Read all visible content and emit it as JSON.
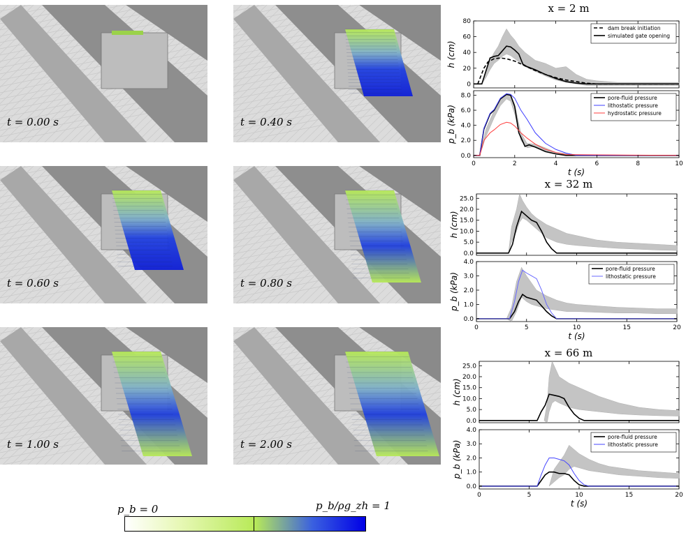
{
  "snapshots": [
    {
      "label": "t = 0.00 s",
      "fill": 0.0
    },
    {
      "label": "t = 0.40 s",
      "fill": 0.4
    },
    {
      "label": "t = 0.60 s",
      "fill": 0.6
    },
    {
      "label": "t = 0.80 s",
      "fill": 0.8
    },
    {
      "label": "t = 1.00 s",
      "fill": 1.0
    },
    {
      "label": "t = 2.00 s",
      "fill": 2.0
    }
  ],
  "colorbar": {
    "left_label": "p_b = 0",
    "right_label": "p_b/ρg_zh = 1",
    "colors": [
      "#ffffff",
      "#e8f8b8",
      "#b8ea58",
      "#3a60e0",
      "#0000e6"
    ]
  },
  "chart_data": [
    {
      "type": "line",
      "title": "x = 2 m",
      "ylabel": "h (cm)",
      "xlim": [
        0,
        10
      ],
      "ylim": [
        -5,
        80
      ],
      "yticks": [
        0,
        20,
        40,
        60,
        80
      ],
      "xticks": [
        0,
        2,
        4,
        6,
        8,
        10
      ],
      "show_xticklabels": false,
      "legend": "top-right",
      "band": {
        "x": [
          0.4,
          0.6,
          0.8,
          1.0,
          1.2,
          1.4,
          1.6,
          1.8,
          2.0,
          2.2,
          2.5,
          3.0,
          3.5,
          4.0,
          4.5,
          5.0,
          5.5,
          6.0,
          7.0,
          8.0,
          9.0,
          10.0
        ],
        "lo": [
          0,
          8,
          18,
          26,
          30,
          35,
          38,
          36,
          32,
          28,
          22,
          16,
          10,
          5,
          2,
          0,
          -2,
          -2,
          -2,
          -2,
          -2,
          -2
        ],
        "hi": [
          0,
          15,
          30,
          40,
          48,
          60,
          70,
          62,
          56,
          48,
          40,
          30,
          26,
          20,
          22,
          12,
          6,
          4,
          2,
          2,
          2,
          2
        ]
      },
      "series": [
        {
          "name": "dam break initiation",
          "color": "#000000",
          "dash": "5,3",
          "x": [
            0.2,
            0.35,
            0.5,
            0.7,
            1.0,
            1.3,
            1.6,
            2.0,
            2.5,
            3.0,
            3.5,
            4.0,
            4.5,
            5.0,
            5.5,
            6.0,
            10.0
          ],
          "y": [
            0,
            10,
            20,
            28,
            32,
            33,
            32,
            29,
            23,
            17,
            12,
            8,
            5,
            3,
            1,
            0,
            0
          ]
        },
        {
          "name": "simulated gate opening",
          "color": "#000000",
          "dash": "",
          "x": [
            0,
            0.4,
            0.8,
            1.0,
            1.2,
            1.4,
            1.6,
            1.8,
            2.0,
            2.2,
            2.4,
            2.6,
            3.0,
            3.5,
            4.0,
            4.5,
            5.0,
            5.5,
            10.0
          ],
          "y": [
            0,
            0,
            33,
            35,
            36,
            42,
            48,
            47,
            43,
            38,
            25,
            22,
            18,
            12,
            7,
            3,
            1,
            0,
            0
          ]
        }
      ]
    },
    {
      "type": "line",
      "ylabel": "p_b (kPa)",
      "xlabel": "t (s)",
      "xlim": [
        0,
        10
      ],
      "ylim": [
        -0.3,
        8.6
      ],
      "yticks": [
        0.0,
        2.0,
        4.0,
        6.0,
        8.0
      ],
      "xticks": [
        0,
        2,
        4,
        6,
        8,
        10
      ],
      "show_xticklabels": true,
      "legend": "top-right",
      "band": {
        "x": [
          0.3,
          0.6,
          1.0,
          1.3,
          1.6,
          1.8,
          2.0,
          2.3,
          2.6,
          3.0,
          3.5,
          4.0,
          5.0,
          10.0
        ],
        "lo": [
          0,
          2.5,
          5.0,
          6.6,
          7.5,
          7.2,
          5.5,
          2.0,
          1.0,
          1.2,
          0.6,
          0.2,
          0,
          0
        ],
        "hi": [
          0,
          3.5,
          6.0,
          7.6,
          8.2,
          8.0,
          6.8,
          3.0,
          1.6,
          1.5,
          1.0,
          0.4,
          0.1,
          0
        ]
      },
      "series": [
        {
          "name": "pore-fluid pressure",
          "color": "#000000",
          "dash": "",
          "x": [
            0,
            0.3,
            0.5,
            0.8,
            1.0,
            1.3,
            1.6,
            1.8,
            2.0,
            2.2,
            2.5,
            2.7,
            3.0,
            3.5,
            4.0,
            4.5,
            10.0
          ],
          "y": [
            0,
            0,
            3.5,
            5.5,
            6.0,
            7.5,
            8.1,
            8.0,
            6.5,
            3.0,
            1.2,
            1.4,
            1.1,
            0.5,
            0.2,
            0,
            0
          ]
        },
        {
          "name": "lithostatic pressure",
          "color": "#3c3cff",
          "dash": "",
          "x": [
            0,
            0.3,
            0.5,
            0.8,
            1.0,
            1.3,
            1.6,
            1.8,
            2.0,
            2.3,
            2.6,
            3.0,
            3.5,
            4.0,
            4.5,
            5.0,
            10.0
          ],
          "y": [
            0,
            0,
            3.6,
            5.6,
            6.1,
            7.6,
            8.2,
            8.1,
            7.6,
            6.0,
            4.8,
            3.0,
            1.6,
            0.8,
            0.3,
            0,
            0
          ]
        },
        {
          "name": "hydrostatic pressure",
          "color": "#ff3c3c",
          "dash": "",
          "x": [
            0,
            0.3,
            0.5,
            0.8,
            1.0,
            1.3,
            1.6,
            1.8,
            2.0,
            2.3,
            2.6,
            3.0,
            3.5,
            4.0,
            4.5,
            10.0
          ],
          "y": [
            0,
            0,
            2.0,
            3.0,
            3.4,
            4.1,
            4.4,
            4.3,
            3.9,
            3.0,
            2.3,
            1.5,
            0.8,
            0.4,
            0.1,
            0
          ]
        }
      ]
    },
    {
      "type": "line",
      "title": "x = 32 m",
      "ylabel": "h (cm)",
      "xlim": [
        0,
        20
      ],
      "ylim": [
        -1,
        27
      ],
      "yticks": [
        0.0,
        5.0,
        10.0,
        15.0,
        20.0,
        25.0
      ],
      "xticks": [
        0,
        5,
        10,
        15,
        20
      ],
      "show_xticklabels": false,
      "band": {
        "x": [
          3.2,
          3.5,
          4.0,
          4.3,
          4.6,
          5.0,
          5.5,
          6.0,
          7.0,
          8.0,
          9.0,
          10.0,
          12.0,
          14.0,
          16.0,
          18.0,
          20.0
        ],
        "lo": [
          0,
          5,
          10,
          14,
          16,
          15,
          13,
          11,
          7,
          5,
          4,
          3.5,
          2.8,
          2.2,
          1.8,
          1.4,
          1.2
        ],
        "hi": [
          0,
          12,
          20,
          27,
          24,
          21,
          18,
          16,
          13,
          11,
          9,
          8,
          6,
          5,
          4.5,
          4,
          3.5
        ]
      },
      "series": [
        {
          "name": "",
          "color": "#000000",
          "dash": "",
          "x": [
            0,
            3.2,
            3.6,
            4.0,
            4.5,
            5.0,
            5.5,
            6.0,
            6.5,
            7.0,
            7.5,
            8.0,
            20.0
          ],
          "y": [
            0,
            0,
            4,
            12,
            19,
            17,
            15,
            14,
            10,
            5,
            2,
            0,
            0
          ]
        }
      ]
    },
    {
      "type": "line",
      "ylabel": "p_b (kPa)",
      "xlabel": "t (s)",
      "xlim": [
        0,
        20
      ],
      "ylim": [
        -0.2,
        4.0
      ],
      "yticks": [
        0.0,
        1.0,
        2.0,
        3.0,
        4.0
      ],
      "xticks": [
        0,
        5,
        10,
        15,
        20
      ],
      "show_xticklabels": true,
      "legend": "top-right",
      "band": {
        "x": [
          3.0,
          3.5,
          4.0,
          4.5,
          5.0,
          5.5,
          6.0,
          7.0,
          8.0,
          9.0,
          10.0,
          12.0,
          14.0,
          16.0,
          18.0,
          20.0
        ],
        "lo": [
          0,
          -0.2,
          0.5,
          1.5,
          1.2,
          1.0,
          0.9,
          0.7,
          0.6,
          0.5,
          0.5,
          0.45,
          0.4,
          0.4,
          0.35,
          0.35
        ],
        "hi": [
          0,
          0.8,
          2.6,
          3.6,
          3.0,
          2.5,
          2.0,
          1.6,
          1.3,
          1.1,
          1.0,
          0.9,
          0.8,
          0.75,
          0.7,
          0.7
        ]
      },
      "series": [
        {
          "name": "pore-fluid pressure",
          "color": "#000000",
          "dash": "",
          "x": [
            0,
            3.3,
            3.8,
            4.2,
            4.6,
            5.0,
            5.5,
            6.0,
            6.5,
            7.0,
            7.5,
            8.0,
            20.0
          ],
          "y": [
            0,
            0,
            0.5,
            1.2,
            1.7,
            1.5,
            1.4,
            1.3,
            0.9,
            0.5,
            0.2,
            0,
            0
          ]
        },
        {
          "name": "lithostatic pressure",
          "color": "#6868ff",
          "dash": "",
          "x": [
            0,
            3.3,
            3.8,
            4.2,
            4.6,
            5.0,
            5.5,
            6.0,
            6.5,
            7.0,
            7.5,
            8.0,
            20.0
          ],
          "y": [
            0,
            0,
            1.2,
            2.6,
            3.4,
            3.2,
            3.0,
            2.8,
            2.0,
            1.0,
            0.4,
            0,
            0
          ]
        }
      ]
    },
    {
      "type": "line",
      "title": "x = 66 m",
      "ylabel": "h (cm)",
      "xlim": [
        0,
        20
      ],
      "ylim": [
        -1,
        27
      ],
      "yticks": [
        0.0,
        5.0,
        10.0,
        15.0,
        20.0,
        25.0
      ],
      "xticks": [
        0,
        5,
        10,
        15,
        20
      ],
      "show_xticklabels": false,
      "band": {
        "x": [
          6.5,
          6.8,
          7.0,
          7.3,
          7.6,
          8.0,
          9.0,
          10.0,
          11.0,
          12.0,
          14.0,
          16.0,
          18.0,
          20.0
        ],
        "lo": [
          0,
          -1,
          4,
          8,
          9,
          8,
          6,
          5,
          4.5,
          4,
          3,
          2.5,
          2.2,
          2.0
        ],
        "hi": [
          0,
          8,
          20,
          27,
          24,
          20,
          17,
          15,
          13,
          11,
          8,
          6,
          5,
          4.5
        ]
      },
      "series": [
        {
          "name": "",
          "color": "#000000",
          "dash": "",
          "x": [
            0,
            5.8,
            6.2,
            6.6,
            7.0,
            7.5,
            8.0,
            8.5,
            9.0,
            9.5,
            10.0,
            10.5,
            20.0
          ],
          "y": [
            0,
            0,
            4,
            7,
            12,
            11.5,
            11,
            10,
            6,
            3,
            1,
            0,
            0
          ]
        }
      ]
    },
    {
      "type": "line",
      "ylabel": "p_b (kPa)",
      "xlabel": "t (s)",
      "xlim": [
        0,
        20
      ],
      "ylim": [
        -0.2,
        4.0
      ],
      "yticks": [
        0.0,
        1.0,
        2.0,
        3.0,
        4.0
      ],
      "xticks": [
        0,
        5,
        10,
        15,
        20
      ],
      "show_xticklabels": true,
      "legend": "top-right",
      "band": {
        "x": [
          7.0,
          7.5,
          8.0,
          8.5,
          9.0,
          9.5,
          10.0,
          11.0,
          12.0,
          13.0,
          14.0,
          16.0,
          18.0,
          20.0
        ],
        "lo": [
          0,
          0.3,
          0.6,
          0.8,
          1.2,
          1.4,
          1.3,
          1.1,
          1.0,
          0.9,
          0.8,
          0.7,
          0.6,
          0.55
        ],
        "hi": [
          0,
          1.2,
          1.7,
          2.2,
          2.9,
          2.6,
          2.3,
          1.9,
          1.6,
          1.4,
          1.3,
          1.1,
          1.0,
          0.9
        ]
      },
      "series": [
        {
          "name": "pore-fluid pressure",
          "color": "#000000",
          "dash": "",
          "x": [
            0,
            5.8,
            6.2,
            6.6,
            7.0,
            7.5,
            8.0,
            8.5,
            9.0,
            9.5,
            10.0,
            10.5,
            20.0
          ],
          "y": [
            0,
            0,
            0.4,
            0.8,
            1.0,
            1.0,
            0.9,
            0.9,
            0.8,
            0.4,
            0.1,
            0,
            0
          ]
        },
        {
          "name": "lithostatic pressure",
          "color": "#4646ff",
          "dash": "",
          "x": [
            0,
            5.8,
            6.2,
            6.6,
            7.0,
            7.5,
            8.0,
            8.5,
            9.0,
            9.5,
            10.0,
            10.5,
            11.0,
            20.0
          ],
          "y": [
            0,
            0,
            0.8,
            1.5,
            2.0,
            2.0,
            1.9,
            1.8,
            1.5,
            0.9,
            0.4,
            0.1,
            0,
            0
          ]
        }
      ]
    }
  ]
}
